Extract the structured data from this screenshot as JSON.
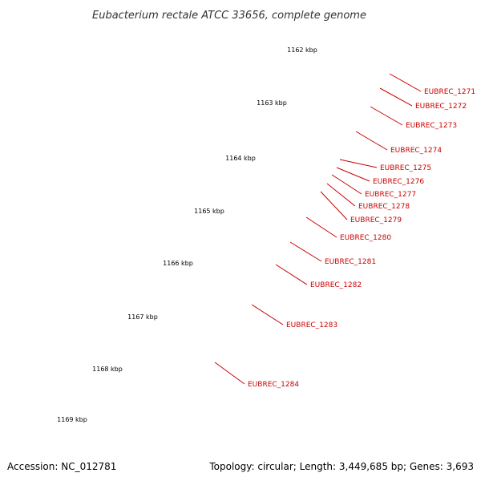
{
  "title": "Eubacterium rectale ATCC 33656, complete genome",
  "footer": {
    "accession": "Accession: NC_012781",
    "info": "Topology: circular; Length: 3,449,685 bp; Genes: 3,693"
  },
  "colors": {
    "backbone": "#8c8c8c",
    "gene": "#ff0000",
    "gene_highlight_pink": "#ff1493",
    "gene_highlight_orange": "#ff8c00",
    "tick": "#2e8b2e",
    "label": "#cc0000"
  },
  "kbp_ticks": [
    "1162 kbp",
    "1163 kbp",
    "1164 kbp",
    "1165 kbp",
    "1166 kbp",
    "1167 kbp",
    "1168 kbp",
    "1169 kbp"
  ],
  "gene_labels": [
    "EUBREC_1271",
    "EUBREC_1272",
    "EUBREC_1273",
    "EUBREC_1274",
    "EUBREC_1275",
    "EUBREC_1276",
    "EUBREC_1277",
    "EUBREC_1278",
    "EUBREC_1279",
    "EUBREC_1280",
    "EUBREC_1281",
    "EUBREC_1282",
    "EUBREC_1283",
    "EUBREC_1284"
  ]
}
